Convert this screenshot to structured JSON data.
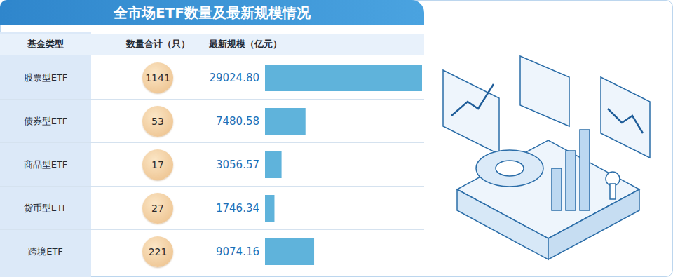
{
  "chart_data": {
    "type": "bar",
    "orientation": "horizontal",
    "title": "全市场ETF数量及最新规模情况",
    "column_headers": [
      "基金类型",
      "数量合计（只）",
      "最新规模（亿元）"
    ],
    "categories": [
      "股票型ETF",
      "债券型ETF",
      "商品型ETF",
      "货币型ETF",
      "跨境ETF"
    ],
    "counts": [
      1141,
      53,
      17,
      27,
      221
    ],
    "values": [
      29024.8,
      7480.58,
      3056.57,
      1746.34,
      9074.16
    ],
    "value_labels": [
      "29024.80",
      "7480.58",
      "3056.57",
      "1746.34",
      "9074.16"
    ],
    "data_labels": true,
    "color": "#5fb3db",
    "xlim": [
      0,
      29024.8
    ],
    "tick_labels": false
  }
}
